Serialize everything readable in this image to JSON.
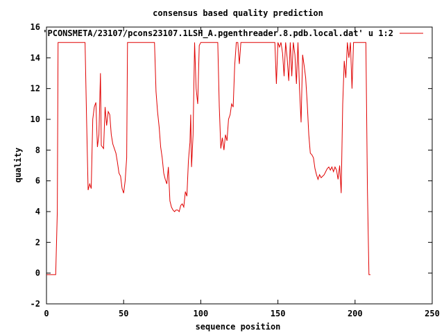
{
  "chart_data": {
    "type": "line",
    "title": "consensus based quality prediction",
    "xlabel": "sequence position",
    "ylabel": "quality",
    "xlim": [
      0,
      250
    ],
    "ylim": [
      -2,
      16
    ],
    "xticks": [
      0,
      50,
      100,
      150,
      200,
      250
    ],
    "yticks": [
      -2,
      0,
      2,
      4,
      6,
      8,
      10,
      12,
      14,
      16
    ],
    "grid": false,
    "legend_position": "top-right",
    "series": [
      {
        "name": "'PCONSMETA/23107/pcons23107.1LSH_A.pgenthreader.8.pdb.local.dat' u 1:2",
        "color": "#e00000",
        "points": [
          [
            0,
            -0.1
          ],
          [
            6,
            -0.1
          ],
          [
            7,
            4.0
          ],
          [
            7.5,
            15
          ],
          [
            25,
            15
          ],
          [
            26,
            10.0
          ],
          [
            27,
            5.4
          ],
          [
            28,
            5.8
          ],
          [
            29,
            5.5
          ],
          [
            30,
            10.0
          ],
          [
            31,
            10.8
          ],
          [
            32,
            11.1
          ],
          [
            33,
            8.2
          ],
          [
            34,
            9.0
          ],
          [
            35,
            13.0
          ],
          [
            35.5,
            8.3
          ],
          [
            37,
            8.1
          ],
          [
            38,
            10.8
          ],
          [
            39,
            9.6
          ],
          [
            40,
            10.5
          ],
          [
            41,
            10.3
          ],
          [
            42,
            9.0
          ],
          [
            43,
            8.4
          ],
          [
            45,
            7.8
          ],
          [
            46,
            7.2
          ],
          [
            47,
            6.5
          ],
          [
            48,
            6.3
          ],
          [
            49,
            5.5
          ],
          [
            50,
            5.2
          ],
          [
            51,
            6.0
          ],
          [
            52,
            7.5
          ],
          [
            52.5,
            15
          ],
          [
            70,
            15
          ],
          [
            71,
            11.8
          ],
          [
            72,
            10.5
          ],
          [
            73,
            9.5
          ],
          [
            74,
            8.2
          ],
          [
            75,
            7.5
          ],
          [
            76,
            6.5
          ],
          [
            77,
            6.1
          ],
          [
            78,
            5.8
          ],
          [
            79,
            6.9
          ],
          [
            80,
            4.7
          ],
          [
            81,
            4.3
          ],
          [
            82,
            4.1
          ],
          [
            83,
            4.0
          ],
          [
            84,
            4.1
          ],
          [
            85,
            4.1
          ],
          [
            86,
            4.0
          ],
          [
            87,
            4.4
          ],
          [
            88,
            4.5
          ],
          [
            89,
            4.3
          ],
          [
            90,
            5.3
          ],
          [
            91,
            5.0
          ],
          [
            92,
            7.3
          ],
          [
            93,
            8.5
          ],
          [
            93.5,
            10.3
          ],
          [
            94,
            6.9
          ],
          [
            95,
            9.0
          ],
          [
            96,
            15
          ],
          [
            97,
            12.0
          ],
          [
            98,
            11.0
          ],
          [
            99,
            14.8
          ],
          [
            100,
            15
          ],
          [
            101,
            15
          ],
          [
            111,
            15
          ],
          [
            112,
            10.8
          ],
          [
            113,
            8.1
          ],
          [
            114,
            8.8
          ],
          [
            115,
            8.0
          ],
          [
            116,
            9.0
          ],
          [
            117,
            8.6
          ],
          [
            118,
            10.0
          ],
          [
            119,
            10.3
          ],
          [
            120,
            11.0
          ],
          [
            121,
            10.8
          ],
          [
            122,
            13.5
          ],
          [
            123,
            15
          ],
          [
            124,
            15
          ],
          [
            125,
            13.6
          ],
          [
            126,
            15
          ],
          [
            127,
            15
          ],
          [
            148,
            15
          ],
          [
            149,
            12.3
          ],
          [
            150,
            15
          ],
          [
            151,
            14.7
          ],
          [
            152,
            15
          ],
          [
            153,
            14.3
          ],
          [
            154,
            12.8
          ],
          [
            155,
            15
          ],
          [
            156,
            14.0
          ],
          [
            157,
            12.5
          ],
          [
            158,
            15
          ],
          [
            159,
            12.8
          ],
          [
            160,
            15
          ],
          [
            161,
            14.2
          ],
          [
            162,
            12.3
          ],
          [
            163,
            15
          ],
          [
            164,
            12.0
          ],
          [
            165,
            9.8
          ],
          [
            166,
            14.2
          ],
          [
            167,
            13.5
          ],
          [
            168,
            12.7
          ],
          [
            169,
            11.0
          ],
          [
            170,
            9.0
          ],
          [
            171,
            7.8
          ],
          [
            172,
            7.7
          ],
          [
            173,
            7.5
          ],
          [
            174,
            6.8
          ],
          [
            175,
            6.4
          ],
          [
            176,
            6.1
          ],
          [
            177,
            6.4
          ],
          [
            178,
            6.2
          ],
          [
            179,
            6.3
          ],
          [
            180,
            6.4
          ],
          [
            181,
            6.6
          ],
          [
            182,
            6.8
          ],
          [
            183,
            6.9
          ],
          [
            184,
            6.7
          ],
          [
            185,
            6.9
          ],
          [
            186,
            6.6
          ],
          [
            187,
            6.9
          ],
          [
            188,
            6.7
          ],
          [
            189,
            6.1
          ],
          [
            190,
            7.0
          ],
          [
            191,
            5.2
          ],
          [
            192,
            11.0
          ],
          [
            193,
            13.8
          ],
          [
            194,
            12.7
          ],
          [
            195,
            15
          ],
          [
            196,
            14.0
          ],
          [
            197,
            15
          ],
          [
            198,
            12.0
          ],
          [
            199,
            15
          ],
          [
            200,
            15
          ],
          [
            207,
            15
          ],
          [
            208,
            5.5
          ],
          [
            209,
            -0.1
          ],
          [
            210,
            -0.1
          ]
        ]
      }
    ]
  }
}
